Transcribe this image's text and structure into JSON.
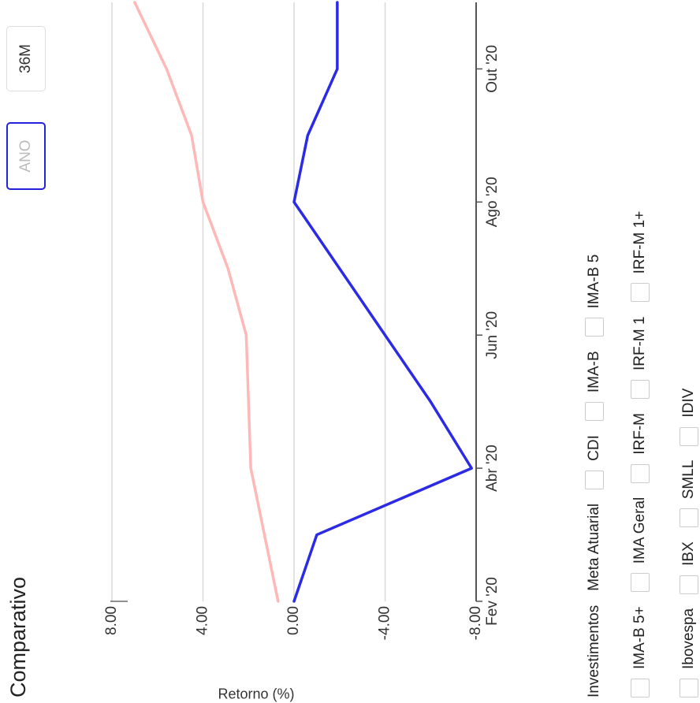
{
  "title": "Comparativo",
  "buttons": {
    "ano": "ANO",
    "m36": "36M"
  },
  "legend": {
    "row1": [
      "Investimentos",
      "Meta Atuarial",
      "CDI",
      "IMA-B",
      "IMA-B 5"
    ],
    "row2": [
      "IMA-B 5+",
      "IMA Geral",
      "IRF-M",
      "IRF-M 1",
      "IRF-M 1+"
    ],
    "row3": [
      "Ibovespa",
      "IBX",
      "SMLL",
      "IDIV"
    ]
  },
  "chart_data": {
    "type": "line",
    "title": "Comparativo",
    "ylabel": "Retorno (%)",
    "xlabel": "",
    "ylim": [
      -8,
      8
    ],
    "yticks": [
      "8.00",
      "4.00",
      "0.00",
      "-4.00",
      "-8.00"
    ],
    "x_tick_labels": [
      "Fev '20",
      "Abr '20",
      "Jun '20",
      "Ago '20",
      "Out '20"
    ],
    "x": [
      "Fev '20",
      "Mar '20",
      "Abr '20",
      "Mai '20",
      "Jun '20",
      "Jul '20",
      "Ago '20",
      "Set '20",
      "Out '20",
      "Nov '20"
    ],
    "series": [
      {
        "name": "Investimentos",
        "color": "#2b2be6",
        "values": [
          0.0,
          -1.0,
          -7.8,
          -6.0,
          -4.0,
          -2.0,
          0.0,
          -0.6,
          -1.9,
          -1.9
        ]
      },
      {
        "name": "Meta Atuarial",
        "color": "#ffb8b8",
        "values": [
          0.7,
          1.3,
          1.9,
          2.0,
          2.1,
          2.9,
          4.0,
          4.5,
          5.6,
          7.0
        ]
      }
    ],
    "grid": true,
    "legend_position": "bottom"
  }
}
